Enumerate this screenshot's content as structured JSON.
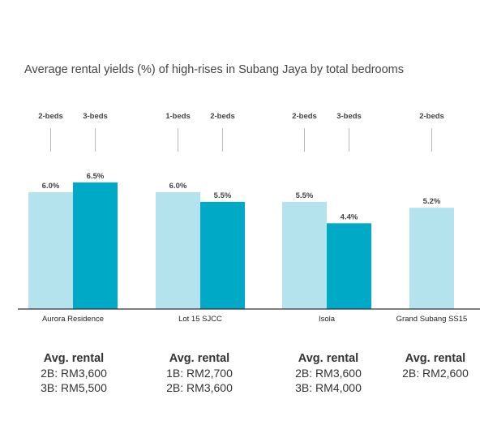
{
  "chart_data": {
    "type": "bar",
    "title": "Average rental yields (%) of high-rises in Subang Jaya by total bedrooms",
    "xlabel": "",
    "ylabel": "",
    "ylim": [
      0,
      9.2
    ],
    "grid": false,
    "colors": {
      "light": "#b4e3ee",
      "dark": "#00a9c6",
      "baseline": "#333333",
      "connector": "#bbbbbb"
    },
    "groups": [
      {
        "name": "Aurora Residence",
        "bars": [
          {
            "beds": "2-beds",
            "value": 6.0,
            "label": "6.0%",
            "color": "light"
          },
          {
            "beds": "3-beds",
            "value": 6.5,
            "label": "6.5%",
            "color": "dark"
          }
        ]
      },
      {
        "name": "Lot 15 SJCC",
        "bars": [
          {
            "beds": "1-beds",
            "value": 6.0,
            "label": "6.0%",
            "color": "light"
          },
          {
            "beds": "2-beds",
            "value": 5.5,
            "label": "5.5%",
            "color": "dark"
          }
        ]
      },
      {
        "name": "Isola",
        "bars": [
          {
            "beds": "2-beds",
            "value": 5.5,
            "label": "5.5%",
            "color": "light"
          },
          {
            "beds": "3-beds",
            "value": 4.4,
            "label": "4.4%",
            "color": "dark"
          }
        ]
      },
      {
        "name": "Grand Subang SS15",
        "bars": [
          {
            "beds": "2-beds",
            "value": 5.2,
            "label": "5.2%",
            "color": "light"
          }
        ]
      }
    ]
  },
  "rental": [
    {
      "heading": "Avg. rental",
      "lines": [
        "2B: RM3,600",
        "3B: RM5,500"
      ]
    },
    {
      "heading": "Avg. rental",
      "lines": [
        "1B: RM2,700",
        "2B: RM3,600"
      ]
    },
    {
      "heading": "Avg. rental",
      "lines": [
        "2B: RM3,600",
        "3B: RM4,000"
      ]
    },
    {
      "heading": "Avg. rental",
      "lines": [
        "2B: RM2,600"
      ]
    }
  ]
}
